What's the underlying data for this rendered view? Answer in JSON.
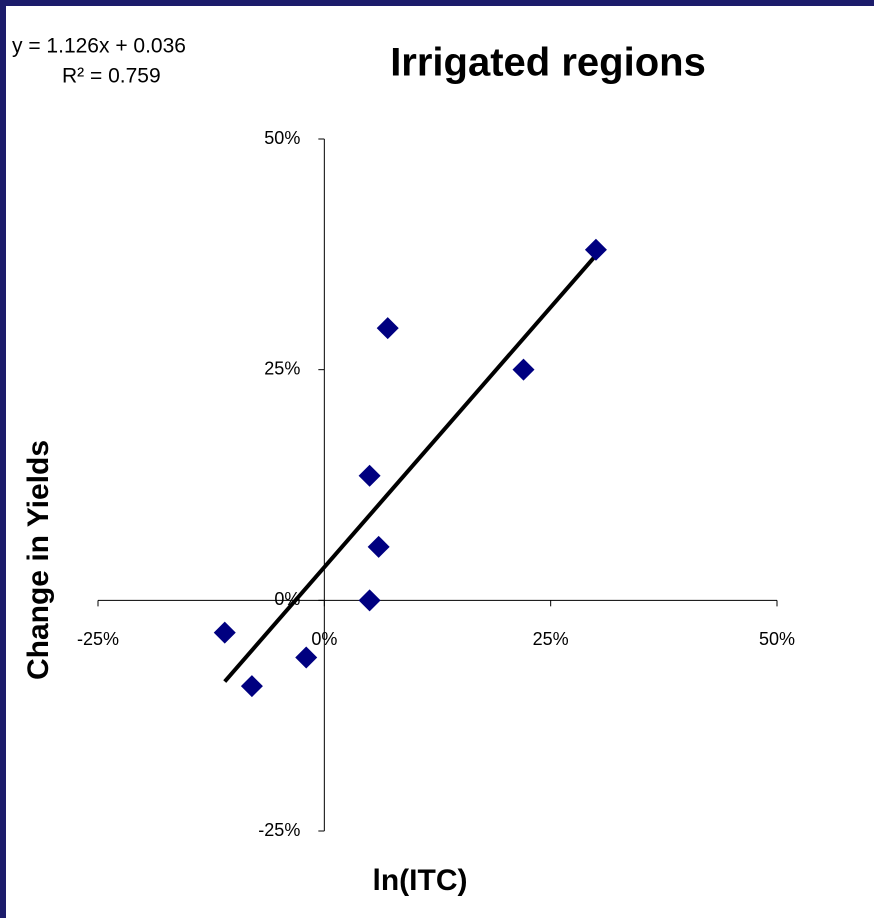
{
  "chart_data": {
    "type": "scatter",
    "title": "Irrigated regions",
    "x_label": "ln(ITC)",
    "y_label": "Change in Yields",
    "x": [
      -11,
      -8,
      -2,
      5,
      6,
      5,
      7,
      22,
      30
    ],
    "values": [
      -3.5,
      -9.3,
      -6.2,
      0,
      5.8,
      13.5,
      29.5,
      25,
      38
    ],
    "color": "#000080",
    "marker": "diamond",
    "trendline": {
      "x": [
        -11,
        30
      ],
      "values": [
        -8.8,
        37.4
      ],
      "color": "#000000",
      "equation": "y = 1.126x + 0.036",
      "r2": "R² = 0.759"
    },
    "xlim": [
      -25,
      50
    ],
    "ylim": [
      -25,
      50
    ],
    "xticks": [
      {
        "value": -25,
        "label": "-25%"
      },
      {
        "value": 0,
        "label": "0%"
      },
      {
        "value": 25,
        "label": "25%"
      },
      {
        "value": 50,
        "label": "50%"
      }
    ],
    "yticks": [
      {
        "value": -25,
        "label": "-25%"
      },
      {
        "value": 0,
        "label": "0%"
      },
      {
        "value": 25,
        "label": "25%"
      },
      {
        "value": 50,
        "label": "50%"
      }
    ],
    "grid": false
  }
}
